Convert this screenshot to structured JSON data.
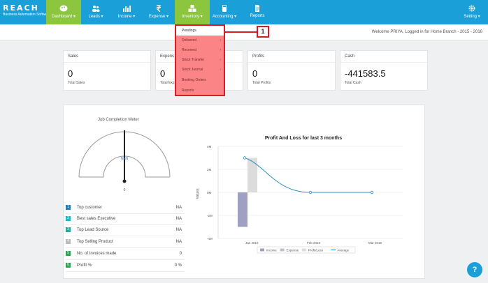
{
  "logo": {
    "name": "REACH",
    "tagline": "Business Automation Software"
  },
  "nav": {
    "items": [
      {
        "label": "Dashboard ▾",
        "icon": "palette-icon"
      },
      {
        "label": "Leads ▾",
        "icon": "users-icon"
      },
      {
        "label": "Income ▾",
        "icon": "bar-chart-icon"
      },
      {
        "label": "Expense ▾",
        "icon": "rupee-icon"
      },
      {
        "label": "Inventory ▾",
        "icon": "boxes-icon"
      },
      {
        "label": "Accounting ▾",
        "icon": "calculator-icon"
      },
      {
        "label": "Reports",
        "icon": "document-icon"
      }
    ],
    "setting_label": "Setting ▾"
  },
  "welcome": {
    "text": "Welcome PRIYA, Logged in for Home Branch - 2015 - 2016"
  },
  "inventory_menu": {
    "items": [
      "Pendings",
      "Delivered",
      "Received",
      "Stock Transfer",
      "Stock Journal",
      "Booking Orders",
      "Reports"
    ],
    "arrow": "›"
  },
  "callout": {
    "number": "1"
  },
  "stats": [
    {
      "title": "Sales",
      "value": "0",
      "sub": "Total Sales"
    },
    {
      "title": "Expens",
      "value": "0",
      "sub": "Total Exp"
    },
    {
      "title": "Profits",
      "value": "0",
      "sub": "Total Profits"
    },
    {
      "title": "Cash",
      "value": "-441583.5",
      "sub": "Total Cash"
    }
  ],
  "meter": {
    "title": "Job Completion Meter",
    "value_label": "NaN",
    "zero_label": "0",
    "needle_color": "#222222",
    "arc_color": "#999999"
  },
  "info_list": [
    {
      "label": "Top customer",
      "value": "NA",
      "badge": "1",
      "color": "#2a7ab5"
    },
    {
      "label": "Best sales Executive",
      "value": "NA",
      "badge": "2",
      "color": "#29b3c6"
    },
    {
      "label": "Top Lead Source",
      "value": "NA",
      "badge": "3",
      "color": "#2ba89c"
    },
    {
      "label": "Top Selling Product",
      "value": "NA",
      "badge": "4",
      "color": "#bbbbbb"
    },
    {
      "label": "No. of Invoices made",
      "value": "0",
      "badge": "5",
      "color": "#31a354"
    },
    {
      "label": "Profit %",
      "value": "0 %",
      "badge": "6",
      "color": "#31a354"
    }
  ],
  "chart_data": {
    "type": "bar",
    "title": "Profit And Loss for last 3 months",
    "ylabel": "Values",
    "categories": [
      "Jan 2016",
      "Feb 2016",
      "Mar 2016"
    ],
    "y_ticks": [
      "4M",
      "2M",
      "0M",
      "-2M",
      "-4M"
    ],
    "ylim": [
      -4000000,
      4000000
    ],
    "series": [
      {
        "name": "Income",
        "type": "bar",
        "color": "#9fa1c4",
        "values": [
          -3000000,
          0,
          0
        ]
      },
      {
        "name": "Expense",
        "type": "bar",
        "color": "#bfbfd0",
        "values": [
          0,
          0,
          0
        ]
      },
      {
        "name": "Profit/Loss",
        "type": "bar",
        "color": "#dcdcdc",
        "values": [
          3000000,
          0,
          0
        ]
      },
      {
        "name": "Average",
        "type": "line",
        "color": "#2c8fc9",
        "values": [
          3000000,
          0,
          0
        ]
      }
    ],
    "legend_position": "bottom"
  },
  "help": {
    "label": "?"
  }
}
